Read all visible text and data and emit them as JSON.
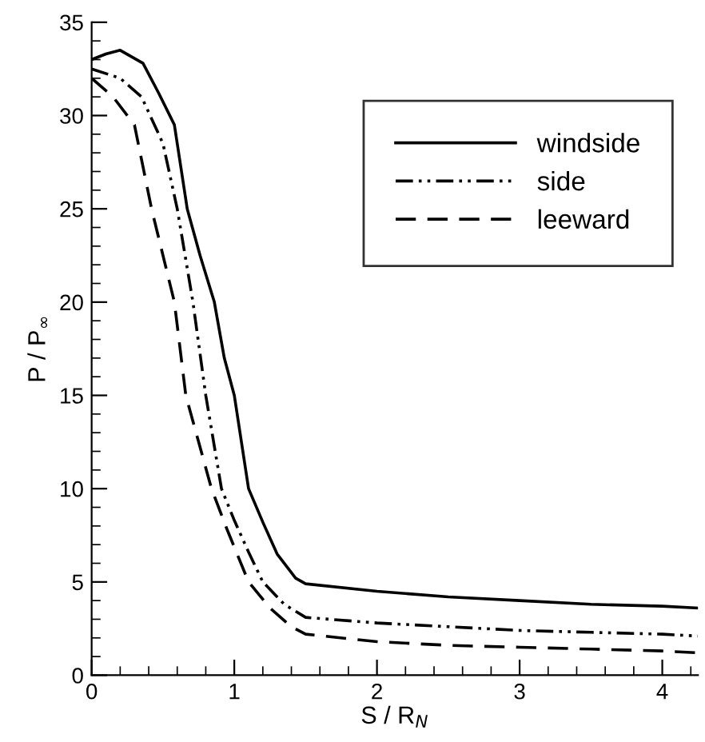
{
  "chart_data": {
    "type": "line",
    "xlabel": "S / R$_{N}$",
    "ylabel": "P / P$_{∞}$",
    "xlim": [
      0,
      4.25
    ],
    "ylim": [
      0,
      35
    ],
    "xticks": [
      0,
      1,
      2,
      3,
      4
    ],
    "yticks": [
      0,
      5,
      10,
      15,
      20,
      25,
      30,
      35
    ],
    "grid": false,
    "legend": "top right",
    "series": [
      {
        "name": "windside",
        "color": "#000000",
        "line_style": "solid",
        "x": [
          0,
          0.1,
          0.2,
          0.36,
          0.47,
          0.58,
          0.67,
          0.76,
          0.86,
          0.93,
          1.0,
          1.1,
          1.2,
          1.3,
          1.43,
          1.5,
          2,
          2.5,
          3,
          3.5,
          4,
          4.25
        ],
        "values": [
          33,
          33.3,
          33.5,
          32.8,
          31.2,
          29.5,
          25,
          22.5,
          20,
          17,
          15,
          10,
          8.2,
          6.5,
          5.2,
          4.9,
          4.5,
          4.2,
          4.0,
          3.8,
          3.7,
          3.6
        ]
      },
      {
        "name": "side",
        "color": "#000000",
        "line_style": "dashdotdot",
        "x": [
          0,
          0.2,
          0.35,
          0.5,
          0.6,
          0.71,
          0.8,
          0.91,
          1.0,
          1.1,
          1.2,
          1.35,
          1.5,
          2,
          2.5,
          3,
          3.5,
          4,
          4.25
        ],
        "values": [
          32.5,
          32,
          31,
          28.5,
          25,
          20,
          15,
          10,
          8.3,
          6.6,
          5,
          3.8,
          3.1,
          2.8,
          2.6,
          2.4,
          2.3,
          2.2,
          2.1
        ]
      },
      {
        "name": "leeward",
        "color": "#000000",
        "line_style": "dashed",
        "x": [
          0,
          0.15,
          0.3,
          0.42,
          0.5,
          0.58,
          0.66,
          0.75,
          0.84,
          0.95,
          1.1,
          1.25,
          1.4,
          1.5,
          2,
          2.5,
          3,
          3.5,
          4,
          4.25
        ],
        "values": [
          32,
          31,
          29.5,
          25,
          22.5,
          20,
          15,
          12.5,
          10,
          7.8,
          5,
          3.6,
          2.6,
          2.2,
          1.8,
          1.6,
          1.5,
          1.4,
          1.3,
          1.2
        ]
      }
    ]
  }
}
